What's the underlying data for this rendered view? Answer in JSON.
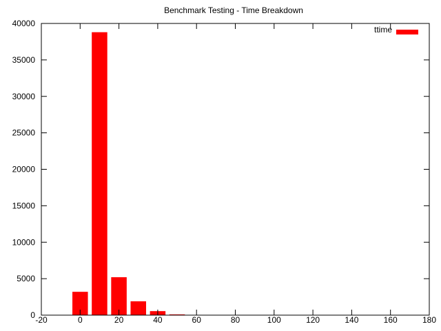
{
  "chart_data": {
    "type": "bar",
    "title": "Benchmark Testing - Time Breakdown",
    "xlabel": "",
    "ylabel": "",
    "xlim": [
      -20,
      180
    ],
    "ylim": [
      0,
      40000
    ],
    "xticks": [
      -20,
      0,
      20,
      40,
      60,
      80,
      100,
      120,
      140,
      160,
      180
    ],
    "yticks": [
      0,
      5000,
      10000,
      15000,
      20000,
      25000,
      30000,
      35000,
      40000
    ],
    "bar_width": 8,
    "legend_position": "top-right",
    "grid": false,
    "series": [
      {
        "name": "ttime",
        "color": "#ff0000",
        "x": [
          0,
          10,
          20,
          30,
          40,
          50
        ],
        "values": [
          3200,
          38800,
          5200,
          1900,
          550,
          100
        ]
      }
    ]
  }
}
